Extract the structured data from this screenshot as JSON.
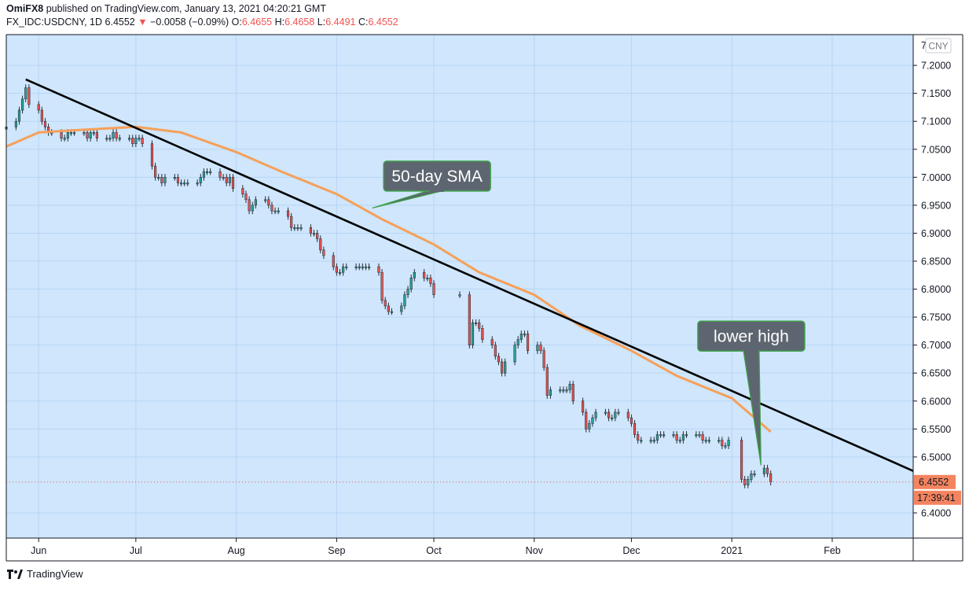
{
  "header": {
    "author": "OmiFX8",
    "published": "published on TradingView.com, January 13, 2021 04:20:21 GMT",
    "symbol": "FX_IDC:USDCNY, 1D",
    "last": "6.4552",
    "change_arrow": "▼",
    "change": "−0.0058 (−0.09%)",
    "o_label": "O:",
    "o_value": "6.4655",
    "h_label": "H:",
    "h_value": "6.4658",
    "l_label": "L:",
    "l_value": "6.4491",
    "c_label": "C:",
    "c_value": "6.4552"
  },
  "footer": {
    "brand": "TradingView",
    "brand_icon": "tradingview-logo-icon"
  },
  "colors": {
    "bg": "#cfe6fc",
    "grid": "#b7d5f5",
    "up": "#26a69a",
    "down": "#ef5350",
    "sma": "#f5a05a",
    "trend": "#000000",
    "callout_fill": "#5d6670",
    "callout_border": "#3fa14a"
  },
  "chart_data": {
    "type": "candlestick",
    "title": "",
    "xlabel": "",
    "ylabel": "",
    "currency_label": "CNY",
    "ylim": [
      6.355,
      7.255
    ],
    "y_ticks": [
      7.2,
      7.15,
      7.1,
      7.05,
      7.0,
      6.95,
      6.9,
      6.85,
      6.8,
      6.75,
      6.7,
      6.65,
      6.6,
      6.55,
      6.5,
      6.4
    ],
    "y_tick_labels": [
      "7.2000",
      "7.1500",
      "7.1000",
      "7.0500",
      "7.0000",
      "6.9500",
      "6.9000",
      "6.8500",
      "6.8000",
      "6.7500",
      "6.7000",
      "6.6500",
      "6.6000",
      "6.5500",
      "6.5000",
      "6.4000"
    ],
    "y_top_tick_label": "7",
    "xlim": [
      "2020-05-22",
      "2021-02-26"
    ],
    "x_ticks": [
      {
        "date": "2020-06-01",
        "label": "Jun"
      },
      {
        "date": "2020-07-01",
        "label": "Jul"
      },
      {
        "date": "2020-08-01",
        "label": "Aug"
      },
      {
        "date": "2020-09-01",
        "label": "Sep"
      },
      {
        "date": "2020-10-01",
        "label": "Oct"
      },
      {
        "date": "2020-11-01",
        "label": "Nov"
      },
      {
        "date": "2020-12-01",
        "label": "Dec"
      },
      {
        "date": "2021-01-01",
        "label": "2021"
      },
      {
        "date": "2021-02-01",
        "label": "Feb"
      }
    ],
    "grid": true,
    "current_price": {
      "value": 6.4552,
      "label": "6.4552",
      "countdown": "17:39:41"
    },
    "closes": [
      [
        "2020-05-22",
        7.09
      ],
      [
        "2020-05-25",
        7.1
      ],
      [
        "2020-05-26",
        7.12
      ],
      [
        "2020-05-27",
        7.14
      ],
      [
        "2020-05-28",
        7.16
      ],
      [
        "2020-05-29",
        7.13
      ],
      [
        "2020-06-01",
        7.12
      ],
      [
        "2020-06-02",
        7.1
      ],
      [
        "2020-06-03",
        7.09
      ],
      [
        "2020-06-04",
        7.08
      ],
      [
        "2020-06-05",
        7.08
      ],
      [
        "2020-06-08",
        7.07
      ],
      [
        "2020-06-09",
        7.07
      ],
      [
        "2020-06-10",
        7.08
      ],
      [
        "2020-06-11",
        7.08
      ],
      [
        "2020-06-12",
        7.08
      ],
      [
        "2020-06-15",
        7.08
      ],
      [
        "2020-06-16",
        7.07
      ],
      [
        "2020-06-17",
        7.08
      ],
      [
        "2020-06-18",
        7.08
      ],
      [
        "2020-06-19",
        7.07
      ],
      [
        "2020-06-22",
        7.07
      ],
      [
        "2020-06-23",
        7.07
      ],
      [
        "2020-06-24",
        7.08
      ],
      [
        "2020-06-25",
        7.07
      ],
      [
        "2020-06-26",
        7.07
      ],
      [
        "2020-06-29",
        7.07
      ],
      [
        "2020-06-30",
        7.06
      ],
      [
        "2020-07-01",
        7.07
      ],
      [
        "2020-07-02",
        7.07
      ],
      [
        "2020-07-03",
        7.06
      ],
      [
        "2020-07-06",
        7.02
      ],
      [
        "2020-07-07",
        7.0
      ],
      [
        "2020-07-08",
        7.0
      ],
      [
        "2020-07-09",
        6.99
      ],
      [
        "2020-07-10",
        7.0
      ],
      [
        "2020-07-13",
        7.0
      ],
      [
        "2020-07-14",
        6.99
      ],
      [
        "2020-07-15",
        6.99
      ],
      [
        "2020-07-16",
        6.99
      ],
      [
        "2020-07-17",
        6.99
      ],
      [
        "2020-07-20",
        6.99
      ],
      [
        "2020-07-21",
        7.0
      ],
      [
        "2020-07-22",
        7.01
      ],
      [
        "2020-07-23",
        7.01
      ],
      [
        "2020-07-24",
        7.01
      ],
      [
        "2020-07-27",
        7.0
      ],
      [
        "2020-07-28",
        7.0
      ],
      [
        "2020-07-29",
        6.99
      ],
      [
        "2020-07-30",
        7.0
      ],
      [
        "2020-07-31",
        6.98
      ],
      [
        "2020-08-03",
        6.97
      ],
      [
        "2020-08-04",
        6.96
      ],
      [
        "2020-08-05",
        6.94
      ],
      [
        "2020-08-06",
        6.95
      ],
      [
        "2020-08-07",
        6.96
      ],
      [
        "2020-08-10",
        6.96
      ],
      [
        "2020-08-11",
        6.95
      ],
      [
        "2020-08-12",
        6.94
      ],
      [
        "2020-08-13",
        6.94
      ],
      [
        "2020-08-14",
        6.94
      ],
      [
        "2020-08-17",
        6.93
      ],
      [
        "2020-08-18",
        6.91
      ],
      [
        "2020-08-19",
        6.91
      ],
      [
        "2020-08-20",
        6.91
      ],
      [
        "2020-08-21",
        6.91
      ],
      [
        "2020-08-24",
        6.9
      ],
      [
        "2020-08-25",
        6.9
      ],
      [
        "2020-08-26",
        6.89
      ],
      [
        "2020-08-27",
        6.87
      ],
      [
        "2020-08-28",
        6.86
      ],
      [
        "2020-08-31",
        6.84
      ],
      [
        "2020-09-01",
        6.83
      ],
      [
        "2020-09-02",
        6.83
      ],
      [
        "2020-09-03",
        6.84
      ],
      [
        "2020-09-04",
        6.84
      ],
      [
        "2020-09-07",
        6.84
      ],
      [
        "2020-09-08",
        6.84
      ],
      [
        "2020-09-09",
        6.84
      ],
      [
        "2020-09-10",
        6.84
      ],
      [
        "2020-09-11",
        6.84
      ],
      [
        "2020-09-14",
        6.83
      ],
      [
        "2020-09-15",
        6.78
      ],
      [
        "2020-09-16",
        6.77
      ],
      [
        "2020-09-17",
        6.76
      ],
      [
        "2020-09-18",
        6.76
      ],
      [
        "2020-09-21",
        6.77
      ],
      [
        "2020-09-22",
        6.79
      ],
      [
        "2020-09-23",
        6.8
      ],
      [
        "2020-09-24",
        6.82
      ],
      [
        "2020-09-25",
        6.83
      ],
      [
        "2020-09-28",
        6.82
      ],
      [
        "2020-09-29",
        6.82
      ],
      [
        "2020-09-30",
        6.81
      ],
      [
        "2020-10-01",
        6.79
      ],
      [
        "2020-10-09",
        6.79
      ],
      [
        "2020-10-12",
        6.7
      ],
      [
        "2020-10-13",
        6.74
      ],
      [
        "2020-10-14",
        6.74
      ],
      [
        "2020-10-15",
        6.73
      ],
      [
        "2020-10-16",
        6.71
      ],
      [
        "2020-10-19",
        6.7
      ],
      [
        "2020-10-20",
        6.68
      ],
      [
        "2020-10-21",
        6.67
      ],
      [
        "2020-10-22",
        6.65
      ],
      [
        "2020-10-23",
        6.67
      ],
      [
        "2020-10-26",
        6.7
      ],
      [
        "2020-10-27",
        6.71
      ],
      [
        "2020-10-28",
        6.72
      ],
      [
        "2020-10-29",
        6.72
      ],
      [
        "2020-10-30",
        6.69
      ],
      [
        "2020-11-02",
        6.7
      ],
      [
        "2020-11-03",
        6.69
      ],
      [
        "2020-11-04",
        6.66
      ],
      [
        "2020-11-05",
        6.61
      ],
      [
        "2020-11-06",
        6.62
      ],
      [
        "2020-11-09",
        6.62
      ],
      [
        "2020-11-10",
        6.62
      ],
      [
        "2020-11-11",
        6.62
      ],
      [
        "2020-11-12",
        6.63
      ],
      [
        "2020-11-13",
        6.6
      ],
      [
        "2020-11-16",
        6.58
      ],
      [
        "2020-11-17",
        6.55
      ],
      [
        "2020-11-18",
        6.56
      ],
      [
        "2020-11-19",
        6.57
      ],
      [
        "2020-11-20",
        6.58
      ],
      [
        "2020-11-23",
        6.58
      ],
      [
        "2020-11-24",
        6.57
      ],
      [
        "2020-11-25",
        6.57
      ],
      [
        "2020-11-26",
        6.58
      ],
      [
        "2020-11-27",
        6.58
      ],
      [
        "2020-11-30",
        6.57
      ],
      [
        "2020-12-01",
        6.56
      ],
      [
        "2020-12-02",
        6.54
      ],
      [
        "2020-12-03",
        6.53
      ],
      [
        "2020-12-04",
        6.53
      ],
      [
        "2020-12-07",
        6.53
      ],
      [
        "2020-12-08",
        6.53
      ],
      [
        "2020-12-09",
        6.54
      ],
      [
        "2020-12-10",
        6.54
      ],
      [
        "2020-12-11",
        6.54
      ],
      [
        "2020-12-14",
        6.54
      ],
      [
        "2020-12-15",
        6.53
      ],
      [
        "2020-12-16",
        6.53
      ],
      [
        "2020-12-17",
        6.54
      ],
      [
        "2020-12-18",
        6.54
      ],
      [
        "2020-12-21",
        6.54
      ],
      [
        "2020-12-22",
        6.54
      ],
      [
        "2020-12-23",
        6.53
      ],
      [
        "2020-12-24",
        6.53
      ],
      [
        "2020-12-25",
        6.53
      ],
      [
        "2020-12-28",
        6.53
      ],
      [
        "2020-12-29",
        6.52
      ],
      [
        "2020-12-30",
        6.52
      ],
      [
        "2020-12-31",
        6.53
      ],
      [
        "2021-01-04",
        6.46
      ],
      [
        "2021-01-05",
        6.45
      ],
      [
        "2021-01-06",
        6.46
      ],
      [
        "2021-01-07",
        6.47
      ],
      [
        "2021-01-08",
        6.47
      ],
      [
        "2021-01-11",
        6.48
      ],
      [
        "2021-01-12",
        6.47
      ],
      [
        "2021-01-13",
        6.4552
      ]
    ],
    "sma": {
      "name": "50-day SMA",
      "points": [
        [
          "2020-05-22",
          7.055
        ],
        [
          "2020-06-01",
          7.08
        ],
        [
          "2020-06-15",
          7.085
        ],
        [
          "2020-07-01",
          7.09
        ],
        [
          "2020-07-15",
          7.08
        ],
        [
          "2020-08-01",
          7.045
        ],
        [
          "2020-08-15",
          7.01
        ],
        [
          "2020-09-01",
          6.97
        ],
        [
          "2020-09-15",
          6.925
        ],
        [
          "2020-10-01",
          6.88
        ],
        [
          "2020-10-15",
          6.83
        ],
        [
          "2020-11-01",
          6.79
        ],
        [
          "2020-11-15",
          6.735
        ],
        [
          "2020-12-01",
          6.69
        ],
        [
          "2020-12-15",
          6.645
        ],
        [
          "2021-01-01",
          6.605
        ],
        [
          "2021-01-13",
          6.545
        ]
      ]
    },
    "trendline": {
      "from": [
        "2020-05-28",
        7.175
      ],
      "to": [
        "2021-02-26",
        6.475
      ]
    },
    "annotations": [
      {
        "text": "50-day SMA",
        "box_center": [
          "2020-10-02",
          7.002
        ],
        "pointer": [
          "2020-09-12",
          6.945
        ]
      },
      {
        "text": "lower high",
        "box_center": [
          "2021-01-07",
          6.716
        ],
        "pointer": [
          "2021-01-10",
          6.485
        ]
      }
    ]
  }
}
